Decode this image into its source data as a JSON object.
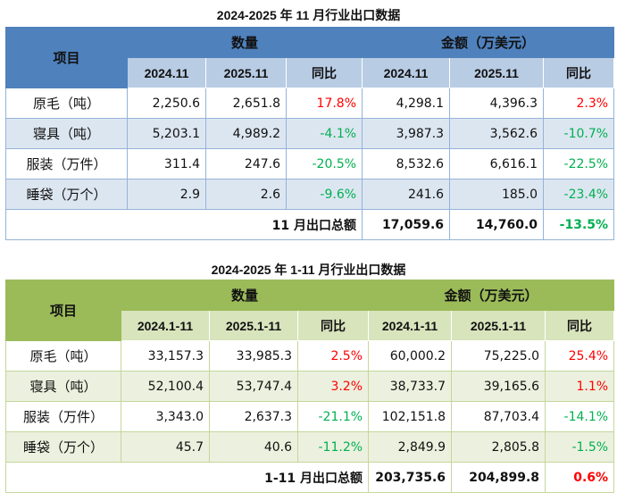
{
  "tables": [
    {
      "title": "2024-2025 年 11 月行业出口数据",
      "item_header": "项目",
      "group_headers": [
        "数量",
        "金额（万美元）"
      ],
      "sub_headers": [
        "2024.11",
        "2025.11",
        "同比",
        "2024.11",
        "2025.11",
        "同比"
      ],
      "rows": [
        {
          "item": "原毛（吨）",
          "values": [
            "2,250.6",
            "2,651.8",
            "17.8%",
            "4,298.1",
            "4,396.3",
            "2.3%"
          ]
        },
        {
          "item": "寝具（吨）",
          "values": [
            "5,203.1",
            "4,989.2",
            "-4.1%",
            "3,987.3",
            "3,562.6",
            "-10.7%"
          ]
        },
        {
          "item": "服装（万件）",
          "values": [
            "311.4",
            "247.6",
            "-20.5%",
            "8,532.6",
            "6,616.1",
            "-22.5%"
          ]
        },
        {
          "item": "睡袋（万个）",
          "values": [
            "2.9",
            "2.6",
            "-9.6%",
            "241.6",
            "185.0",
            "-23.4%"
          ]
        }
      ],
      "total": {
        "label": "11 月出口总额",
        "values": [
          "17,059.6",
          "14,760.0",
          "-13.5%"
        ]
      }
    },
    {
      "title": "2024-2025 年 1-11 月行业出口数据",
      "item_header": "项目",
      "group_headers": [
        "数量",
        "金额（万美元）"
      ],
      "sub_headers": [
        "2024.1-11",
        "2025.1-11",
        "同比",
        "2024.1-11",
        "2025.1-11",
        "同比"
      ],
      "rows": [
        {
          "item": "原毛（吨）",
          "values": [
            "33,157.3",
            "33,985.3",
            "2.5%",
            "60,000.2",
            "75,225.0",
            "25.4%"
          ]
        },
        {
          "item": "寝具（吨）",
          "values": [
            "52,100.4",
            "53,747.4",
            "3.2%",
            "38,733.7",
            "39,165.6",
            "1.1%"
          ]
        },
        {
          "item": "服装（万件）",
          "values": [
            "3,343.0",
            "2,637.3",
            "-21.1%",
            "102,151.8",
            "87,703.4",
            "-14.1%"
          ]
        },
        {
          "item": "睡袋（万个）",
          "values": [
            "45.7",
            "40.6",
            "-11.2%",
            "2,849.9",
            "2,805.8",
            "-1.5%"
          ]
        }
      ],
      "total": {
        "label": "1-11 月出口总额",
        "values": [
          "203,735.6",
          "204,899.8",
          "0.6%"
        ]
      }
    }
  ],
  "colors": {
    "positive": "#ff0000",
    "negative": "#00b050",
    "blue_header": "#4f81bd",
    "green_header": "#9bbb59"
  }
}
